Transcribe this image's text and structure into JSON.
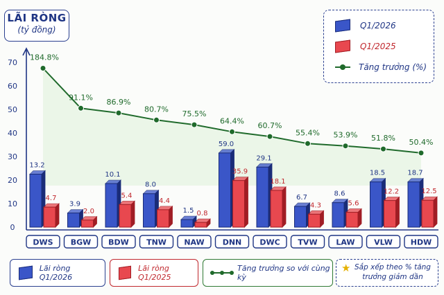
{
  "header": {
    "title": "LÃI RÒNG",
    "unit": "(tỷ đồng)"
  },
  "legend": {
    "q2026": "Q1/2026",
    "q2025": "Q1/2025",
    "growth": "Tăng trưởng (%)"
  },
  "bottom_legend": {
    "q2026": "Lãi ròng Q1/2026",
    "q2025": "Lãi ròng Q1/2025",
    "growth": "Tăng trưởng so với cùng kỳ",
    "note": "Sắp xếp theo % tăng trưởng giảm dần"
  },
  "colors": {
    "blue": "#3a56c8",
    "red": "#e8484f",
    "green": "#1f6a2b",
    "navy": "#1f3584"
  },
  "chart_data": {
    "type": "bar",
    "categories": [
      "DWS",
      "BGW",
      "BDW",
      "TNW",
      "NAW",
      "DNN",
      "DWC",
      "TVW",
      "LAW",
      "VLW",
      "HDW"
    ],
    "series": [
      {
        "name": "Q1/2026",
        "values": [
          13.2,
          3.9,
          10.1,
          8.0,
          1.5,
          59.0,
          29.1,
          6.7,
          8.6,
          18.5,
          18.7
        ],
        "labels": [
          "13.2",
          "3.9",
          "10.1",
          "8.0",
          "1.5",
          "59.0",
          "29.1",
          "6.7",
          "8.6",
          "18.5",
          "18.7"
        ]
      },
      {
        "name": "Q1/2025",
        "values": [
          4.7,
          2.0,
          5.4,
          4.4,
          0.8,
          35.9,
          18.1,
          4.3,
          5.6,
          12.2,
          12.5
        ],
        "labels": [
          "4.7",
          "2.0",
          "5.4",
          "4.4",
          "0.8",
          "35.9",
          "18.1",
          "4.3",
          "5.6",
          "12.2",
          "12.5"
        ]
      }
    ],
    "bar_display_values": {
      "Q1/2026": [
        22.5,
        6.0,
        18.5,
        14.2,
        3.2,
        31.5,
        25.5,
        8.8,
        10.4,
        19.2,
        19.2
      ],
      "Q1/2025": [
        8.5,
        3.0,
        9.6,
        7.4,
        2.0,
        19.8,
        15.6,
        5.5,
        6.3,
        11.3,
        11.4
      ]
    },
    "growth": {
      "name": "Tăng trưởng (%)",
      "values": [
        184.8,
        91.1,
        86.9,
        80.7,
        75.5,
        64.4,
        60.7,
        55.4,
        53.9,
        51.8,
        50.4
      ],
      "labels": [
        "184.8%",
        "91.1%",
        "86.9%",
        "80.7%",
        "75.5%",
        "64.4%",
        "60.7%",
        "55.4%",
        "53.9%",
        "51.8%",
        "50.4%"
      ],
      "plotted_on_axis": [
        67.5,
        50.5,
        48.5,
        45.5,
        43.5,
        40.5,
        38.5,
        35.5,
        34.5,
        33.2,
        31.5
      ]
    },
    "yticks": [
      0,
      10,
      20,
      30,
      40,
      50,
      60,
      70
    ],
    "ylim": [
      0,
      75
    ],
    "grid": false
  }
}
